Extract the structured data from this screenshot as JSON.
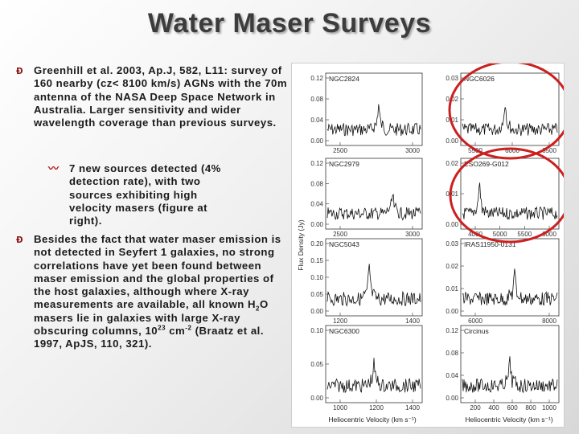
{
  "slide": {
    "title": "Water Maser Surveys",
    "bullets": [
      {
        "icon": "curly-d-bullet-icon",
        "text": "Greenhill et al. 2003, Ap.J, 582, L11: survey of 160 nearby (cz< 8100 km/s) AGNs with the 70m antenna of the NASA Deep Space Network in Australia. Larger sensitivity and wider wavelength coverage than previous surveys."
      },
      {
        "icon": "wave-bullet-icon",
        "text": "7 new sources detected (4% detection rate), with two sources exhibiting high velocity masers (figure at right)."
      },
      {
        "icon": "curly-d-bullet-icon",
        "text_parts": {
          "a": "Besides the fact that water maser emission is not detected in Seyfert 1 galaxies, no strong correlations have yet been found between maser emission and the global properties of the host galaxies, although where X-ray measurements are available, all known H",
          "sub2": "2",
          "b": "O masers lie in galaxies with large X-ray obscuring columns, 10",
          "sup23": "23",
          "c": " cm",
          "supm2": "-2",
          "d": " (Braatz et al. 1997, ApJS, 110, 321)."
        }
      }
    ]
  },
  "figure": {
    "left_ylabel": "Flux Density (Jy)",
    "left_xlabel": "Heliocentric Velocity (km s⁻¹)",
    "right_xlabel": "Heliocentric Velocity (km s⁻¹)",
    "circle_color": "#cc1f1f",
    "panels": [
      {
        "name": "NGC2824",
        "yticks": [
          "0.12",
          "0.08",
          "0.04",
          "0.00"
        ],
        "xticks": [
          "2500",
          "3000"
        ],
        "spike": 0.55,
        "peak": 0.62
      },
      {
        "name": "NGC6026",
        "yticks": [
          "0.03",
          "0.02",
          "0.01",
          "0.00"
        ],
        "xticks": [
          "5500",
          "6000",
          "6500"
        ],
        "spike": 0.45,
        "peak": 0.7
      },
      {
        "name": "NGC2979",
        "yticks": [
          "0.12",
          "0.08",
          "0.04",
          "0.00"
        ],
        "xticks": [
          "2500",
          "3000"
        ],
        "spike": 0.7,
        "peak": 0.45
      },
      {
        "name": "ESO269-G012",
        "yticks": [
          "0.02",
          "0.01",
          "0.00"
        ],
        "xticks": [
          "4000",
          "5000",
          "5500",
          "6000"
        ],
        "spike": 0.18,
        "peak": 0.8
      },
      {
        "name": "NGC5043",
        "yticks": [
          "0.20",
          "0.15",
          "0.10",
          "0.05",
          "0.00"
        ],
        "xticks": [
          "1200",
          "1400"
        ],
        "spike": 0.45,
        "peak": 0.75
      },
      {
        "name": "IRAS11950-0131",
        "yticks": [
          "0.03",
          "0.02",
          "0.01",
          "0.00"
        ],
        "xticks": [
          "6000",
          "8000"
        ],
        "spike": 0.55,
        "peak": 0.6
      },
      {
        "name": "NGC6300",
        "yticks": [
          "0.10",
          "0.05",
          "0.00"
        ],
        "xticks": [
          "1000",
          "1200",
          "1400"
        ],
        "spike": 0.5,
        "peak": 0.5
      },
      {
        "name": "Circinus",
        "yticks": [
          "0.12",
          "0.08",
          "0.04",
          "0.00"
        ],
        "xticks": [
          "200",
          "400",
          "600",
          "800",
          "1000"
        ],
        "spike": 0.5,
        "peak": 0.55
      }
    ]
  }
}
